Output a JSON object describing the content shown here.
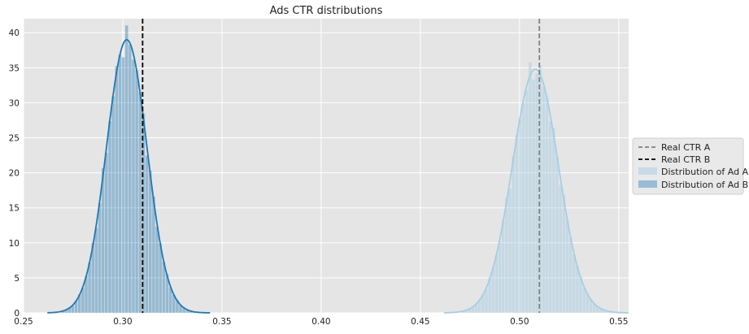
{
  "chart_data": {
    "type": "histogram",
    "title": "Ads CTR distributions",
    "xlabel": "",
    "ylabel": "",
    "xlim": [
      0.25,
      0.555
    ],
    "ylim": [
      0,
      42
    ],
    "xticks": [
      0.25,
      0.3,
      0.35,
      0.4,
      0.45,
      0.5,
      0.55
    ],
    "xtick_labels": [
      "0.25",
      "0.30",
      "0.35",
      "0.40",
      "0.45",
      "0.50",
      "0.55"
    ],
    "yticks": [
      0,
      5,
      10,
      15,
      20,
      25,
      30,
      35,
      40
    ],
    "ytick_labels": [
      "0",
      "5",
      "10",
      "15",
      "20",
      "25",
      "30",
      "35",
      "40"
    ],
    "grid": true,
    "legend_position": "right, outside",
    "series": [
      {
        "name": "Distribution of Ad A",
        "kind": "distribution",
        "mean": 0.508,
        "std": 0.0116,
        "peak_density": 34.8,
        "range": [
          0.462,
          0.555
        ],
        "color": "#a6cee3",
        "bar_alpha": 0.5
      },
      {
        "name": "Distribution of Ad B",
        "kind": "distribution",
        "mean": 0.302,
        "std": 0.0102,
        "peak_density": 39.0,
        "range": [
          0.262,
          0.344
        ],
        "color": "#1f78b4",
        "bar_alpha": 0.4
      }
    ],
    "reference_lines": [
      {
        "name": "Real CTR A",
        "x": 0.51,
        "style": "dashed",
        "color": "#808080"
      },
      {
        "name": "Real CTR B",
        "x": 0.31,
        "style": "dashed",
        "color": "#000000"
      }
    ]
  }
}
